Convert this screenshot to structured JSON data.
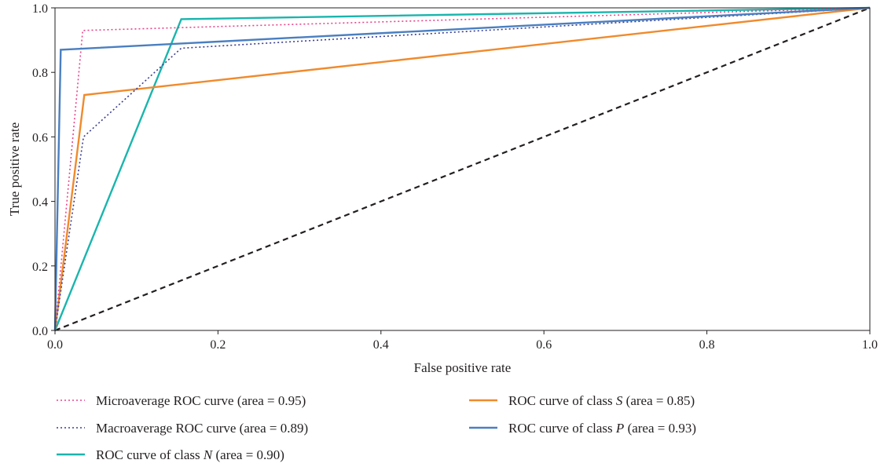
{
  "chart_data": {
    "type": "line",
    "xlabel": "False positive rate",
    "ylabel": "True positive rate",
    "xlim": [
      0,
      1
    ],
    "ylim": [
      0,
      1
    ],
    "x_ticks": [
      "0.0",
      "0.2",
      "0.4",
      "0.6",
      "0.8",
      "1.0"
    ],
    "y_ticks": [
      "0.0",
      "0.2",
      "0.4",
      "0.6",
      "0.8",
      "1.0"
    ],
    "grid": false,
    "legend_position": "below",
    "series": [
      {
        "name": "Microaverage ROC curve (area = 0.95)",
        "name_parts": [
          "Microaverage ROC curve (area = 0.95)"
        ],
        "color": "#e8448a",
        "style": "dotted",
        "points": [
          [
            0,
            0
          ],
          [
            0.034,
            0.93
          ],
          [
            1,
            1
          ]
        ]
      },
      {
        "name": "Macroaverage ROC curve (area = 0.89)",
        "name_parts": [
          "Macroaverage ROC curve (area = 0.89)"
        ],
        "color": "#3a3d8f",
        "style": "dotted",
        "points": [
          [
            0,
            0
          ],
          [
            0.035,
            0.6
          ],
          [
            0.155,
            0.875
          ],
          [
            1,
            1
          ]
        ]
      },
      {
        "name": "ROC curve of class N (area = 0.90)",
        "name_parts": [
          "ROC curve of class ",
          "N",
          " (area = 0.90)"
        ],
        "color": "#1ab5ad",
        "style": "solid",
        "points": [
          [
            0,
            0
          ],
          [
            0.155,
            0.965
          ],
          [
            1,
            1
          ]
        ]
      },
      {
        "name": "ROC curve of class S (area = 0.85)",
        "name_parts": [
          "ROC curve of class ",
          "S",
          " (area = 0.85)"
        ],
        "color": "#f08a2c",
        "style": "solid",
        "points": [
          [
            0,
            0
          ],
          [
            0.036,
            0.73
          ],
          [
            1,
            1
          ]
        ]
      },
      {
        "name": "ROC curve of class P (area = 0.93)",
        "name_parts": [
          "ROC curve of class ",
          "P",
          " (area = 0.93)"
        ],
        "color": "#4a7fc0",
        "style": "solid",
        "points": [
          [
            0,
            0
          ],
          [
            0.007,
            0.87
          ],
          [
            1,
            1
          ]
        ]
      },
      {
        "name": "",
        "color": "#231f20",
        "style": "dashed",
        "points": [
          [
            0,
            0
          ],
          [
            1,
            1
          ]
        ]
      }
    ]
  }
}
